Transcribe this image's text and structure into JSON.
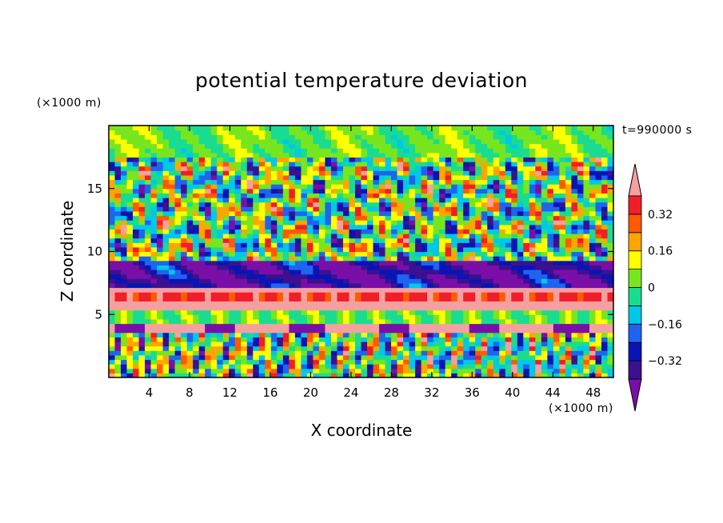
{
  "chart_data": {
    "type": "heatmap",
    "title": "potential temperature deviation",
    "xlabel": "X coordinate",
    "ylabel": "Z coordinate",
    "x_unit": "(×1000 m)",
    "y_unit": "(×1000 m)",
    "timestamp": "t=990000 s",
    "xlim": [
      0,
      50
    ],
    "ylim": [
      0,
      20
    ],
    "x_ticks": [
      4,
      8,
      12,
      16,
      20,
      24,
      28,
      32,
      36,
      40,
      44,
      48
    ],
    "y_ticks": [
      5,
      10,
      15
    ],
    "colorbar": {
      "levels": [
        -0.4,
        -0.32,
        -0.24,
        -0.16,
        -0.08,
        0,
        0.08,
        0.16,
        0.24,
        0.32,
        0.4
      ],
      "tick_values": [
        0.32,
        0.16,
        0,
        -0.16,
        -0.32
      ],
      "tick_labels": [
        "0.32",
        "0.16",
        "0",
        "−0.16",
        "−0.32"
      ],
      "colors": [
        "#7a0fa8",
        "#3c1190",
        "#0a14b4",
        "#1e64f0",
        "#00c8e6",
        "#19dc91",
        "#78e61e",
        "#ffff00",
        "#ffa500",
        "#ff5a00",
        "#f01e28",
        "#f5a0a0"
      ],
      "extend": "both"
    },
    "field": {
      "dominant_features": [
        {
          "name": "upper-layer eddies",
          "z_range": [
            10,
            18
          ],
          "values": "mixed -0.4 to 0.4"
        },
        {
          "name": "warm band",
          "z_range": [
            5,
            7
          ],
          "value": 0.4
        },
        {
          "name": "cold band",
          "z_range": [
            7,
            9
          ],
          "value": -0.4
        },
        {
          "name": "boundary layer plumes",
          "z_range": [
            0,
            4
          ],
          "values": "mixed -0.4 to 0.4"
        }
      ]
    }
  }
}
